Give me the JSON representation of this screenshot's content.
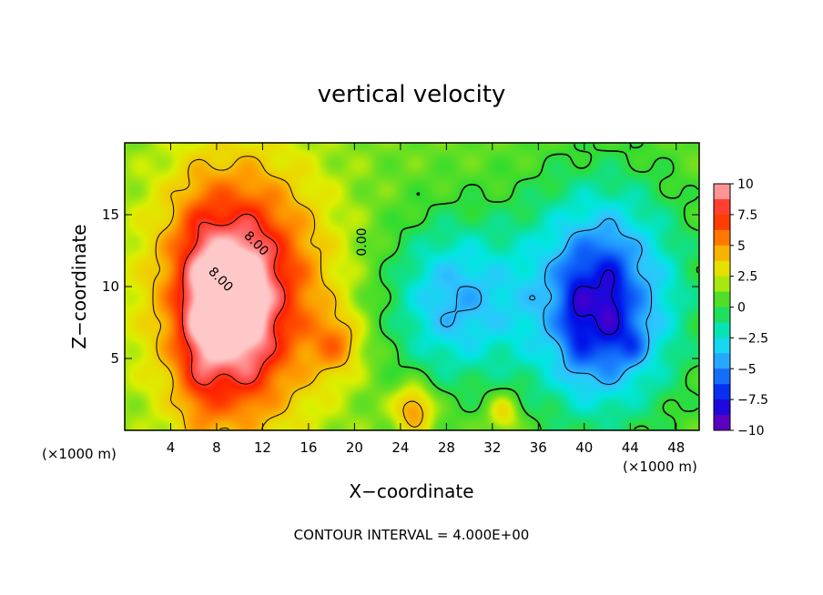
{
  "chart_data": {
    "type": "heatmap",
    "title": "vertical velocity",
    "xlabel": "X−coordinate",
    "ylabel": "Z−coordinate",
    "x_unit_left": "(×1000 m)",
    "x_unit_right": "(×1000 m)",
    "footer": "CONTOUR INTERVAL = 4.000E+00",
    "xlim": [
      0,
      50
    ],
    "ylim": [
      0,
      20
    ],
    "x_ticks": [
      4,
      8,
      12,
      16,
      20,
      24,
      28,
      32,
      36,
      40,
      44,
      48
    ],
    "y_ticks": [
      5,
      10,
      15
    ],
    "colorbar": {
      "min": -10,
      "max": 10,
      "tick_values": [
        10,
        7.5,
        5,
        2.5,
        0,
        -2.5,
        -5,
        -7.5,
        -10
      ],
      "tick_labels": [
        "10",
        "7.5",
        "5",
        "2.5",
        "0",
        "−2.5",
        "−5",
        "−7.5",
        "−10"
      ],
      "stops": [
        {
          "value": -10,
          "color": "#7b00b0"
        },
        {
          "value": -8.75,
          "color": "#3b00d0"
        },
        {
          "value": -7.5,
          "color": "#0010e8"
        },
        {
          "value": -6.25,
          "color": "#0a50f5"
        },
        {
          "value": -5,
          "color": "#1e8cff"
        },
        {
          "value": -3.75,
          "color": "#30c4ff"
        },
        {
          "value": -2.5,
          "color": "#00e6e0"
        },
        {
          "value": -1.25,
          "color": "#10e08a"
        },
        {
          "value": 0,
          "color": "#30dc30"
        },
        {
          "value": 1.25,
          "color": "#70e020"
        },
        {
          "value": 2.5,
          "color": "#dcf000"
        },
        {
          "value": 3.75,
          "color": "#f0d000"
        },
        {
          "value": 5,
          "color": "#ff9600"
        },
        {
          "value": 6.25,
          "color": "#ff5a00"
        },
        {
          "value": 7.5,
          "color": "#ff2000"
        },
        {
          "value": 8.75,
          "color": "#ff6060"
        },
        {
          "value": 10,
          "color": "#ffc8c8"
        }
      ]
    },
    "contour_labels": [
      {
        "text": "8.00",
        "x": 11.2,
        "z": 12.8
      },
      {
        "text": "8.00",
        "x": 8.1,
        "z": 10.3
      },
      {
        "text": "0.00",
        "x": 21.0,
        "z": 13.1
      }
    ],
    "features": [
      {
        "kind": "updraft",
        "x": 10.0,
        "z": 9.5,
        "sx": 5.0,
        "sz": 6.0,
        "w": 8.5
      },
      {
        "kind": "updraft",
        "x": 6.8,
        "z": 7.5,
        "sx": 1.5,
        "sz": 5.5,
        "w": 3.5
      },
      {
        "kind": "updraft",
        "x": 10.6,
        "z": 8.0,
        "sx": 1.5,
        "sz": 4.5,
        "w": 2.5
      },
      {
        "kind": "updraft",
        "x": 18.5,
        "z": 6.0,
        "sx": 1.5,
        "sz": 1.5,
        "w": 3.0
      },
      {
        "kind": "updraft",
        "x": 25.2,
        "z": 1.5,
        "sx": 1.2,
        "sz": 1.2,
        "w": 4.5
      },
      {
        "kind": "updraft",
        "x": 33.0,
        "z": 1.2,
        "sx": 1.0,
        "sz": 1.0,
        "w": 3.0
      },
      {
        "kind": "downdraft",
        "x": 28.5,
        "z": 9.0,
        "sx": 4.0,
        "sz": 4.0,
        "w": -5.0
      },
      {
        "kind": "downdraft",
        "x": 41.5,
        "z": 9.0,
        "sx": 5.0,
        "sz": 5.5,
        "w": -7.5
      },
      {
        "kind": "downdraft",
        "x": 39.5,
        "z": 8.0,
        "sx": 1.0,
        "sz": 3.0,
        "w": -2.5
      },
      {
        "kind": "downdraft",
        "x": 42.2,
        "z": 8.5,
        "sx": 1.0,
        "sz": 3.0,
        "w": -2.5
      },
      {
        "kind": "downdraft",
        "x": 44.2,
        "z": 6.0,
        "sx": 0.8,
        "sz": 1.0,
        "w": -2.0
      }
    ]
  }
}
